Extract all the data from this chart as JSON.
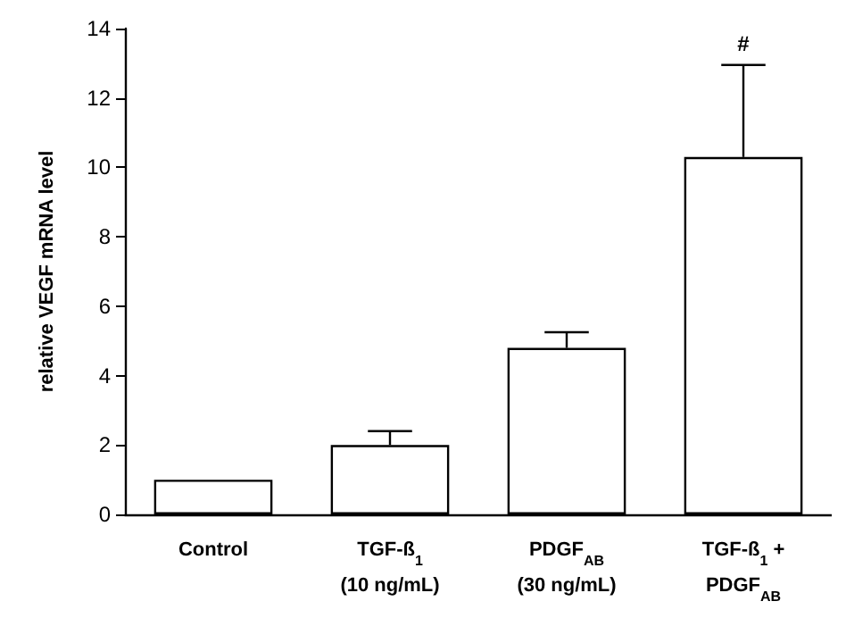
{
  "chart_data": {
    "type": "bar",
    "ylabel": "relative VEGF mRNA level",
    "categories": [
      "Control",
      "TGF-ß$_{1}$\n(10 ng/mL)",
      "PDGF$_{AB}$\n(30 ng/mL)",
      "TGF-ß$_{1}$ +\nPDGF$_{AB}$"
    ],
    "values": [
      1.0,
      2.0,
      4.8,
      10.3
    ],
    "errors": [
      null,
      [
        2.0,
        2.4
      ],
      [
        4.8,
        5.25
      ],
      [
        10.3,
        12.95
      ]
    ],
    "color": "#ffffff",
    "ylim": [
      0,
      14
    ],
    "yticks": [
      0,
      2,
      4,
      6,
      8,
      10,
      12,
      14
    ],
    "annotations": [
      "#"
    ],
    "grid": false
  }
}
